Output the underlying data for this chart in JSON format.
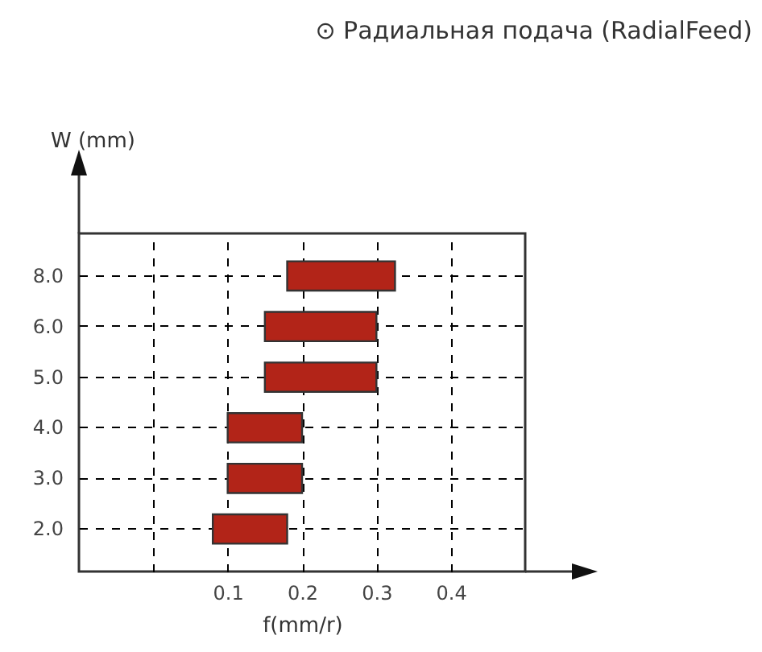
{
  "chart_data": {
    "type": "bar",
    "orientation": "horizontal",
    "title": "⊙ Радиальная подача (RadialFeed)",
    "xlabel": "f(mm/r)",
    "ylabel": "W (mm)",
    "categories": [
      "8.0",
      "6.0",
      "5.0",
      "4.0",
      "3.0",
      "2.0"
    ],
    "base": [
      0.18,
      0.15,
      0.15,
      0.1,
      0.1,
      0.08
    ],
    "values": [
      0.145,
      0.15,
      0.15,
      0.1,
      0.1,
      0.1
    ],
    "color": "#b22418",
    "xlim": [
      -0.1,
      0.5
    ],
    "xticks": [
      {
        "value": 0,
        "label": null
      },
      0.1,
      0.2,
      0.3,
      0.4
    ],
    "grid": true
  }
}
